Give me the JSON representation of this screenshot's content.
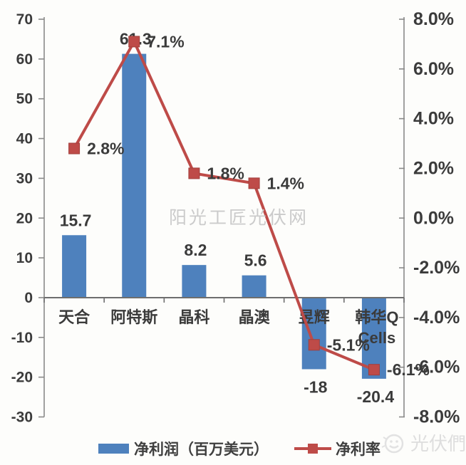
{
  "chart_data": {
    "type": "combo-bar-line",
    "title": "",
    "categories": [
      "天合",
      "阿特斯",
      "晶科",
      "晶澳",
      "昱辉",
      "韩华Q Cells"
    ],
    "categories_display": [
      [
        "天合"
      ],
      [
        "阿特斯"
      ],
      [
        "晶科"
      ],
      [
        "晶澳"
      ],
      [
        "昱辉"
      ],
      [
        "韩华Q",
        "Cells"
      ]
    ],
    "series": [
      {
        "name": "净利润（百万美元）",
        "type": "bar",
        "axis": "left",
        "values": [
          15.7,
          61.3,
          8.2,
          5.6,
          -18,
          -20.4
        ],
        "data_labels": [
          "15.7",
          "61.3",
          "8.2",
          "5.6",
          "-18",
          "-20.4"
        ]
      },
      {
        "name": "净利率",
        "type": "line",
        "axis": "right",
        "values": [
          2.8,
          7.1,
          1.8,
          1.4,
          -5.1,
          -6.1
        ],
        "data_labels": [
          "2.8%",
          "7.1%",
          "1.8%",
          "1.4%",
          "-5.1%",
          "-6.1%"
        ]
      }
    ],
    "left_axis": {
      "min": -30,
      "max": 70,
      "step": 10,
      "tick_labels": [
        "70",
        "60",
        "50",
        "40",
        "30",
        "20",
        "10",
        "0",
        "-10",
        "-20",
        "-30"
      ]
    },
    "right_axis": {
      "min": -8,
      "max": 8,
      "step": 2,
      "tick_labels": [
        "8.0%",
        "6.0%",
        "4.0%",
        "2.0%",
        "0.0%",
        "-2.0%",
        "-4.0%",
        "-6.0%",
        "-8.0%"
      ]
    },
    "legend": {
      "position": "bottom",
      "items": [
        {
          "label": "净利润（百万美元）",
          "marker": "bar-swatch"
        },
        {
          "label": "净利率",
          "marker": "line-square-marker"
        }
      ]
    },
    "grid": false
  },
  "watermark_center": "阳光工匠光伏网",
  "brand": {
    "logo_text": "光伏們",
    "logo_icon": "smiley-face-icon"
  },
  "colors": {
    "bar": "#4E81BD",
    "line": "#BE4B48",
    "marker": "#BE4B48",
    "axis": "#8A8A8A",
    "zero_axis": "#6E6E6E",
    "text": "#3B3B3B",
    "watermark": "#CBCBCB",
    "brand": "#DEDEDE",
    "background": "#FDFDFB"
  }
}
